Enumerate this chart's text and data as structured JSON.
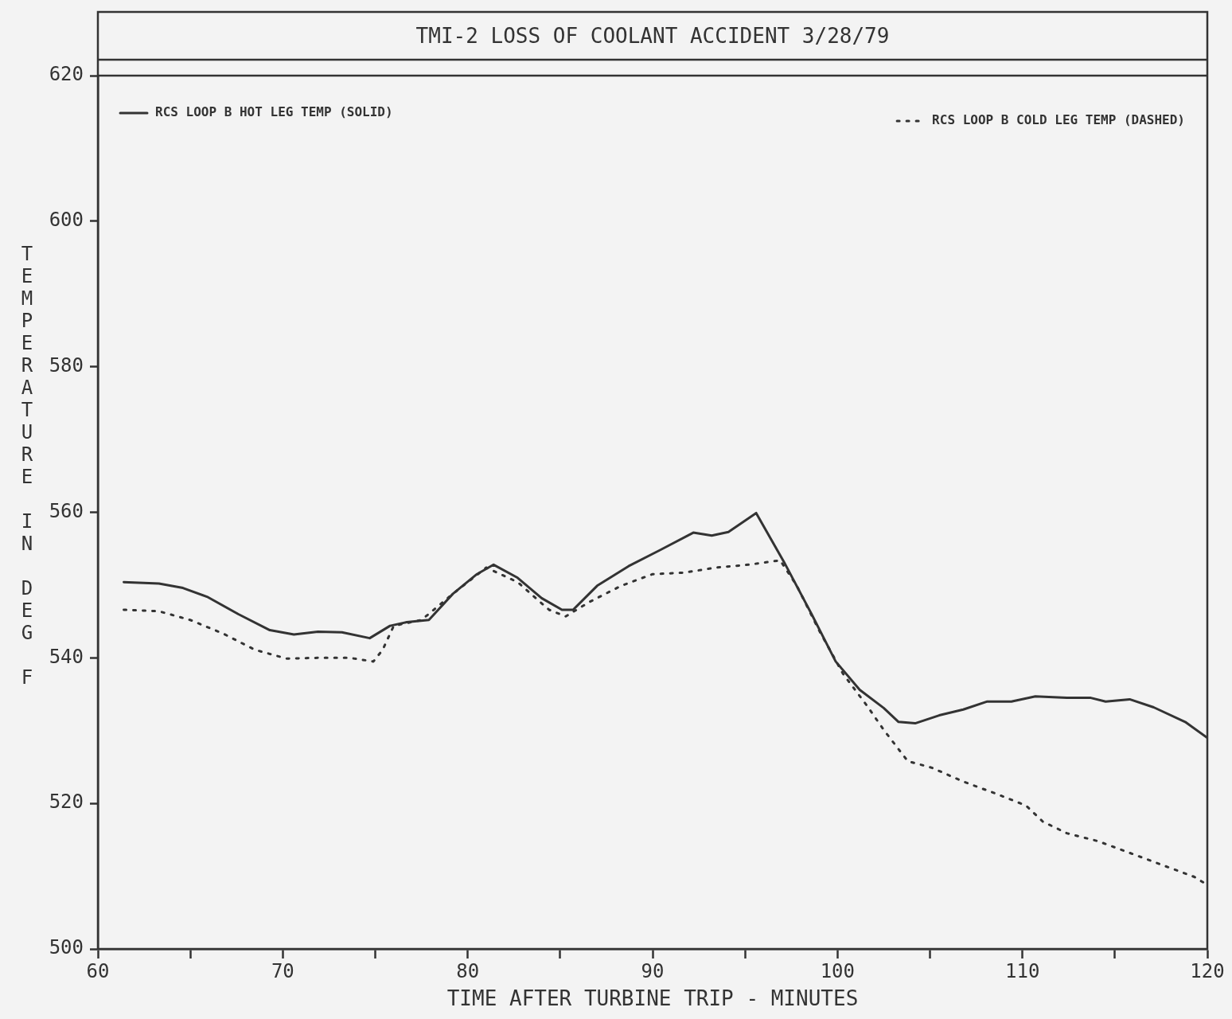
{
  "chart_data": {
    "type": "line",
    "title": "TMI-2 LOSS OF COOLANT ACCIDENT 3/28/79",
    "xlabel": "TIME AFTER TURBINE TRIP - MINUTES",
    "ylabel": "TEMPERATURE IN DEG F",
    "xlim": [
      60,
      120
    ],
    "xticks": [
      60,
      {
        "value": 65,
        "label": null
      },
      70,
      {
        "value": 75,
        "label": null
      },
      80,
      {
        "value": 85,
        "label": null
      },
      90,
      {
        "value": 95,
        "label": null
      },
      100,
      {
        "value": 105,
        "label": null
      },
      110,
      {
        "value": 115,
        "label": null
      },
      120
    ],
    "ylim": [
      500,
      620
    ],
    "yticks": [
      500,
      520,
      540,
      560,
      580,
      600,
      620
    ],
    "grid": false,
    "legend": "top",
    "marker": "none",
    "series": [
      {
        "name": "RCS LOOP B HOT LEG TEMP (SOLID)",
        "color": "#333333",
        "line_style": "solid",
        "x": [
          61.4,
          63.3,
          64.6,
          65.9,
          67.6,
          69.3,
          70.6,
          71.9,
          73.2,
          74.7,
          75.8,
          76.7,
          77.9,
          79.2,
          80.5,
          81.4,
          82.7,
          84.0,
          85.1,
          85.7,
          87.0,
          88.7,
          90.4,
          92.2,
          93.2,
          94.1,
          95.6,
          97.1,
          98.6,
          99.9,
          101.2,
          102.5,
          103.3,
          104.2,
          105.5,
          106.8,
          108.1,
          109.4,
          110.7,
          112.4,
          113.7,
          114.5,
          115.8,
          117.1,
          118.8,
          120.0
        ],
        "values": [
          550.4,
          550.2,
          549.6,
          548.4,
          546.0,
          543.8,
          543.2,
          543.6,
          543.5,
          542.7,
          544.4,
          544.9,
          545.2,
          548.8,
          551.5,
          552.8,
          551.0,
          548.2,
          546.6,
          546.6,
          549.9,
          552.6,
          554.8,
          557.2,
          556.8,
          557.3,
          559.9,
          553.2,
          546.0,
          539.5,
          535.6,
          533.1,
          531.2,
          531.0,
          532.1,
          532.9,
          534.0,
          534.0,
          534.7,
          534.5,
          534.5,
          534.0,
          534.3,
          533.2,
          531.2,
          529.0
        ]
      },
      {
        "name": "RCS LOOP B COLD LEG TEMP (DASHED)",
        "color": "#333333",
        "line_style": "dotted",
        "x": [
          61.4,
          63.3,
          65.0,
          66.8,
          68.5,
          70.2,
          71.9,
          73.6,
          74.9,
          75.4,
          76.0,
          77.5,
          79.2,
          81.0,
          82.7,
          84.4,
          85.3,
          86.6,
          88.3,
          90.0,
          91.7,
          93.4,
          95.2,
          96.9,
          97.8,
          99.0,
          100.3,
          101.6,
          102.5,
          103.8,
          105.1,
          106.8,
          108.5,
          110.2,
          111.1,
          112.4,
          114.1,
          115.8,
          117.6,
          119.3,
          120.0
        ],
        "values": [
          546.6,
          546.4,
          545.2,
          543.3,
          541.1,
          539.9,
          540.0,
          540.0,
          539.5,
          541.1,
          544.4,
          545.2,
          548.8,
          552.4,
          550.4,
          546.6,
          545.7,
          547.7,
          549.9,
          551.5,
          551.7,
          552.4,
          552.8,
          553.4,
          549.9,
          543.8,
          537.8,
          533.4,
          530.1,
          525.8,
          524.9,
          523.0,
          521.4,
          519.7,
          517.5,
          515.9,
          514.8,
          513.2,
          511.5,
          509.9,
          508.8
        ]
      }
    ]
  }
}
